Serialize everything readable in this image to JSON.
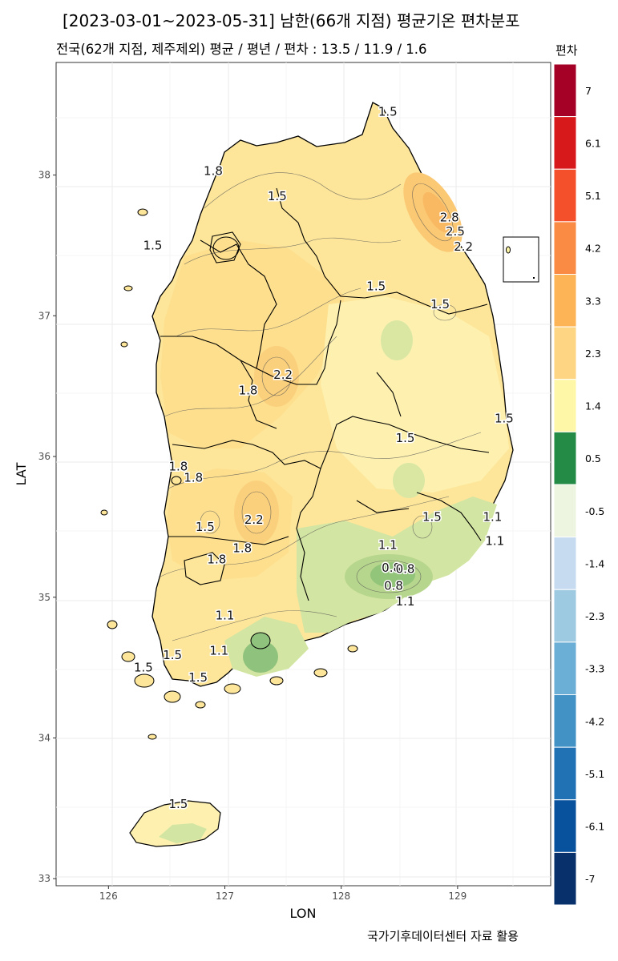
{
  "title": "[2023-03-01~2023-05-31] 남한(66개 지점) 평균기온 편차분포",
  "subtitle": "전국(62개 지점, 제주제외) 평균 / 평년 / 편차 : 13.5 / 11.9 / 1.6",
  "footer": "국가기후데이터센터 자료 활용",
  "axes": {
    "xlabel": "LON",
    "ylabel": "LAT",
    "xticks": [
      126,
      127,
      128,
      129
    ],
    "yticks": [
      33,
      34,
      35,
      36,
      37,
      38
    ],
    "xlim": [
      125.55,
      129.8
    ],
    "ylim": [
      32.95,
      38.8
    ]
  },
  "legend": {
    "title": "편차",
    "labels": [
      "7",
      "6.1",
      "5.1",
      "4.2",
      "3.3",
      "2.3",
      "1.4",
      "0.5",
      "-0.5",
      "-1.4",
      "-2.3",
      "-3.3",
      "-4.2",
      "-5.1",
      "-6.1",
      "-7"
    ],
    "colors": [
      "#a50026",
      "#d7191c",
      "#f4502c",
      "#f98b45",
      "#fdb457",
      "#fed583",
      "#fff7a8",
      "#238b45",
      "#edf5e1",
      "#c6dbef",
      "#9ecae1",
      "#6baed6",
      "#4292c6",
      "#2171b5",
      "#08519c",
      "#08306b"
    ]
  },
  "contour_labels": [
    {
      "text": "1.5",
      "lon": 128.4,
      "lat": 38.45
    },
    {
      "text": "1.8",
      "lon": 126.9,
      "lat": 38.03
    },
    {
      "text": "1.5",
      "lon": 127.45,
      "lat": 37.85
    },
    {
      "text": "2.8",
      "lon": 128.93,
      "lat": 37.7
    },
    {
      "text": "2.5",
      "lon": 128.98,
      "lat": 37.6
    },
    {
      "text": "2.2",
      "lon": 129.05,
      "lat": 37.49
    },
    {
      "text": "1.5",
      "lon": 126.38,
      "lat": 37.5
    },
    {
      "text": "1.5",
      "lon": 128.3,
      "lat": 37.21
    },
    {
      "text": "1.5",
      "lon": 128.85,
      "lat": 37.08
    },
    {
      "text": "2.2",
      "lon": 127.5,
      "lat": 36.58
    },
    {
      "text": "1.8",
      "lon": 127.2,
      "lat": 36.47
    },
    {
      "text": "1.5",
      "lon": 129.4,
      "lat": 36.27
    },
    {
      "text": "1.5",
      "lon": 128.55,
      "lat": 36.13
    },
    {
      "text": "1.8",
      "lon": 126.6,
      "lat": 35.93
    },
    {
      "text": "1.8",
      "lon": 126.73,
      "lat": 35.85
    },
    {
      "text": "1.5",
      "lon": 128.78,
      "lat": 35.57
    },
    {
      "text": "1.1",
      "lon": 129.3,
      "lat": 35.57
    },
    {
      "text": "2.2",
      "lon": 127.25,
      "lat": 35.55
    },
    {
      "text": "1.5",
      "lon": 126.83,
      "lat": 35.5
    },
    {
      "text": "1.1",
      "lon": 129.32,
      "lat": 35.4
    },
    {
      "text": "1.8",
      "lon": 127.15,
      "lat": 35.35
    },
    {
      "text": "1.1",
      "lon": 128.4,
      "lat": 35.37
    },
    {
      "text": "1.8",
      "lon": 126.93,
      "lat": 35.27
    },
    {
      "text": "0.8",
      "lon": 128.43,
      "lat": 35.21
    },
    {
      "text": "0.8",
      "lon": 128.55,
      "lat": 35.2
    },
    {
      "text": "0.8",
      "lon": 128.45,
      "lat": 35.08
    },
    {
      "text": "1.1",
      "lon": 128.55,
      "lat": 34.97
    },
    {
      "text": "1.1",
      "lon": 127.0,
      "lat": 34.87
    },
    {
      "text": "1.1",
      "lon": 126.95,
      "lat": 34.62
    },
    {
      "text": "1.5",
      "lon": 126.55,
      "lat": 34.59
    },
    {
      "text": "1.5",
      "lon": 126.3,
      "lat": 34.5
    },
    {
      "text": "1.5",
      "lon": 126.77,
      "lat": 34.43
    },
    {
      "text": "1.5",
      "lon": 126.6,
      "lat": 33.53
    }
  ]
}
